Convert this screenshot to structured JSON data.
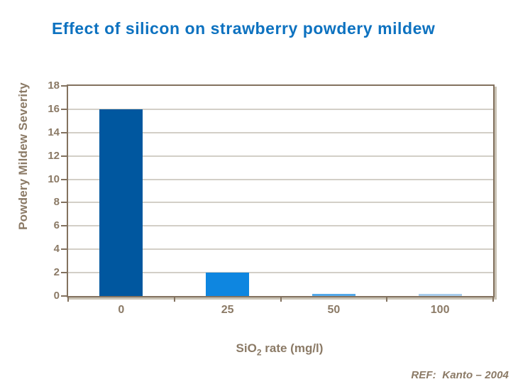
{
  "title": "Effect of silicon on strawberry powdery mildew",
  "reference": "REF:  Kanto – 2004",
  "colors": {
    "title": "#0D72C0",
    "axis": "#83725F",
    "label": "#8B7A66",
    "gridline": "#D3CFC7",
    "shadow": "#C9C2B4",
    "bars": [
      "#00579F",
      "#0E86E0",
      "#54A9EA",
      "#A9CDEC"
    ]
  },
  "chart_data": {
    "type": "bar",
    "title": "Effect of silicon on strawberry powdery mildew",
    "categories": [
      "0",
      "25",
      "50",
      "100"
    ],
    "values": [
      16,
      2,
      0.2,
      0.2
    ],
    "xlabel": "SiO2 rate (mg/l)",
    "xlabel_parts": {
      "main": "SiO",
      "sub": "2",
      "rest": " rate (mg/l)"
    },
    "ylabel": "Powdery Mildew Severity",
    "ylim": [
      0,
      18
    ],
    "ytick_step": 2,
    "grid": "horizontal",
    "legend": "none"
  }
}
